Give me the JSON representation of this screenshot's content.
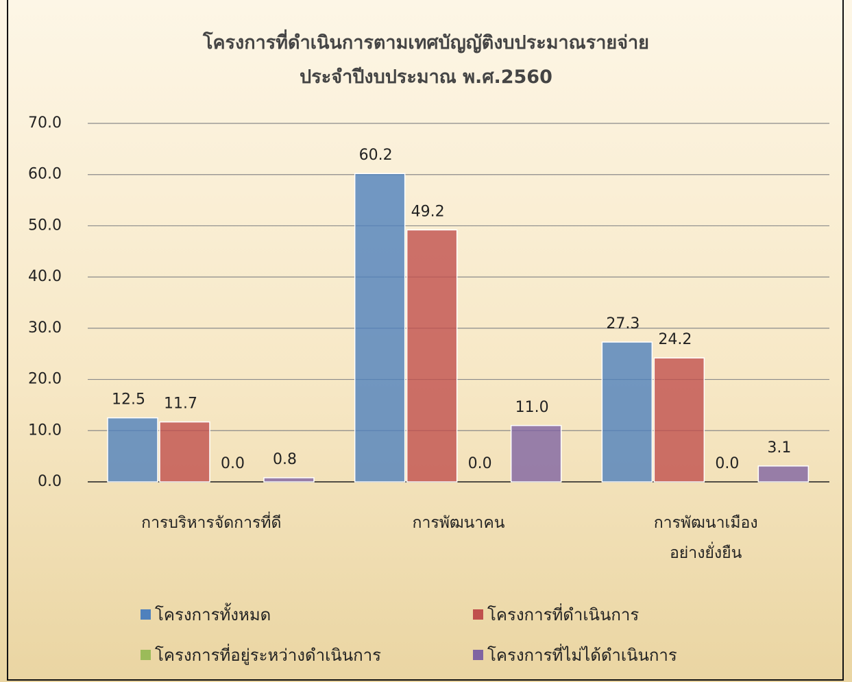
{
  "chart_data": {
    "type": "bar",
    "title": "โครงการที่ดำเนินการตามเทศบัญญัติงบประมาณรายจ่าย\nประจำปีงบประมาณ พ.ศ.2560",
    "categories": [
      "การบริหารจัดการที่ดี",
      "การพัฒนาคน",
      "การพัฒนาเมือง\nอย่างยั่งยืน"
    ],
    "series": [
      {
        "name": "โครงการทั้งหมด",
        "color": "#4f81bd",
        "values": [
          12.5,
          60.2,
          27.3
        ],
        "value_labels": [
          "12.5",
          "60.2",
          "27.3"
        ]
      },
      {
        "name": "โครงการที่ดำเนินการ",
        "color": "#c0504d",
        "values": [
          11.7,
          49.2,
          24.2
        ],
        "value_labels": [
          "11.7",
          "49.2",
          "24.2"
        ]
      },
      {
        "name": "โครงการที่อยู่ระหว่างดำเนินการ",
        "color": "#9bbb59",
        "values": [
          0,
          0,
          0
        ],
        "value_labels": [
          "0.0",
          "0.0",
          "0.0"
        ]
      },
      {
        "name": "โครงการที่ไม่ได้ดำเนินการ",
        "color": "#8064a2",
        "values": [
          0.8,
          11,
          3.1
        ],
        "value_labels": [
          "0.8",
          "11.0",
          "3.1"
        ]
      }
    ],
    "ylim": [
      0,
      70
    ],
    "yticks": [
      {
        "value": 0,
        "label": "0.0"
      },
      {
        "value": 10,
        "label": "10.0"
      },
      {
        "value": 20,
        "label": "20.0"
      },
      {
        "value": 30,
        "label": "30.0"
      },
      {
        "value": 40,
        "label": "40.0"
      },
      {
        "value": 50,
        "label": "50.0"
      },
      {
        "value": 60,
        "label": "60.0"
      },
      {
        "value": 70,
        "label": "70.0"
      }
    ],
    "grid": true,
    "legend": "bottom"
  }
}
